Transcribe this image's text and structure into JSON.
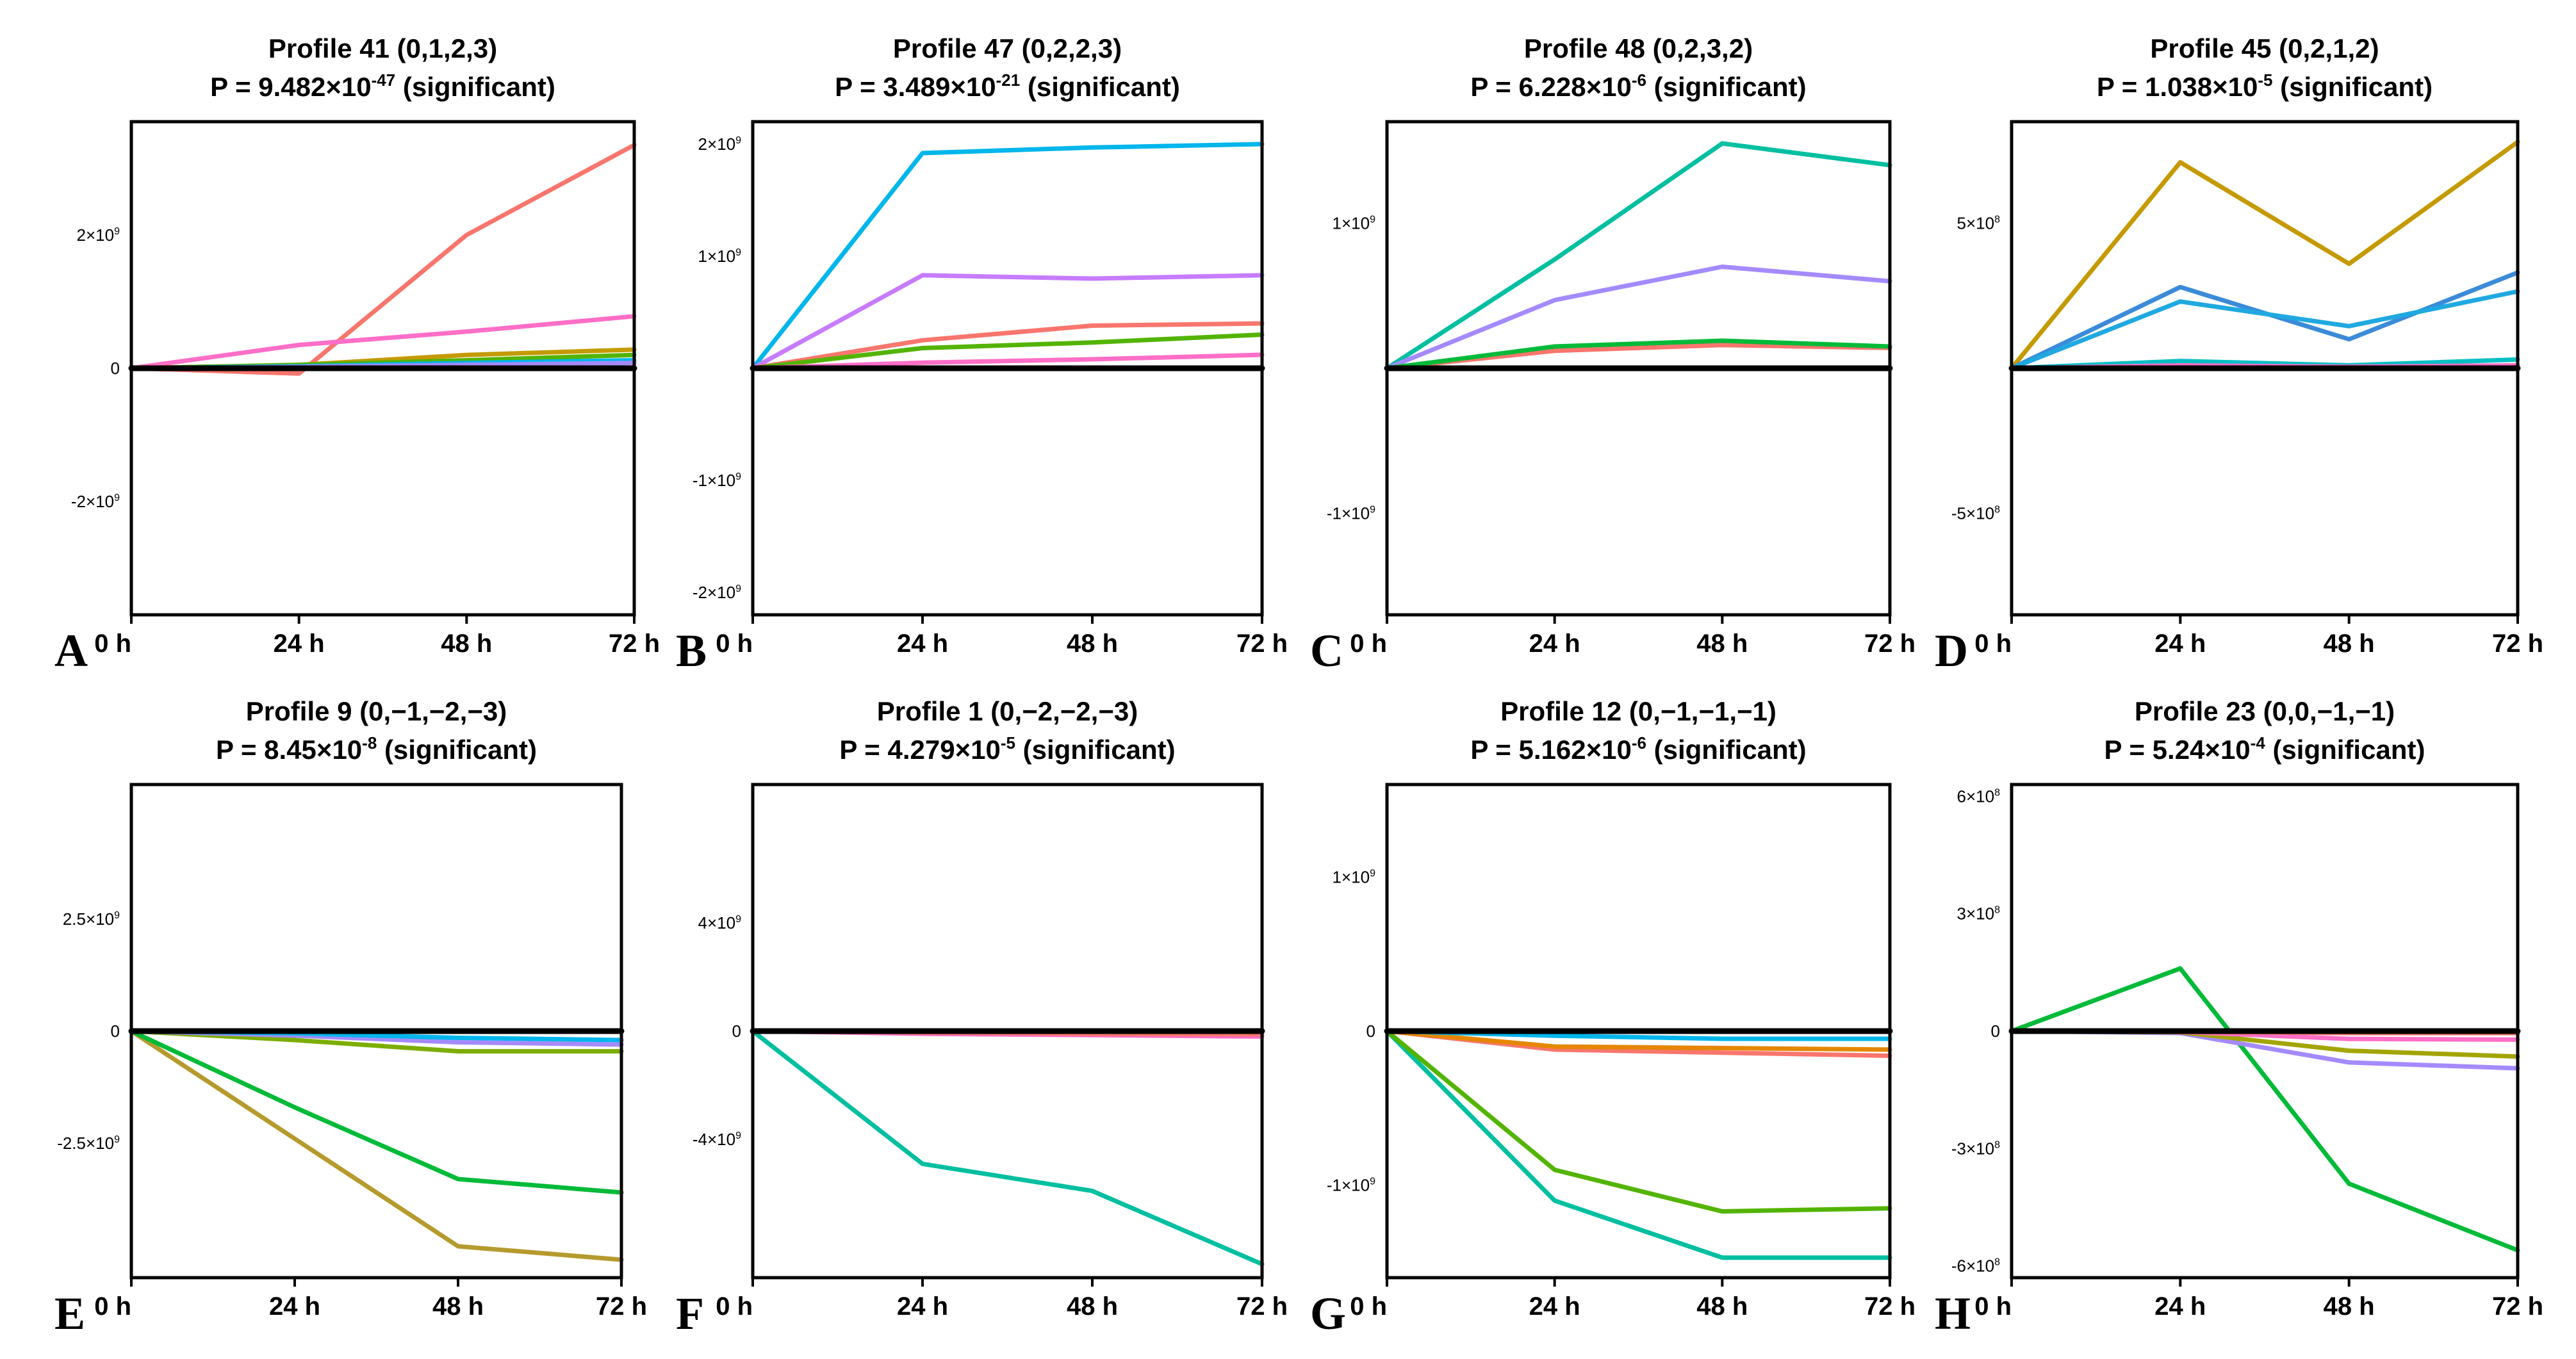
{
  "chart_data": [
    {
      "type": "line",
      "panel_label": "A",
      "title": "Profile 41 (0,1,2,3)",
      "p_base": "P = 9.482×10",
      "p_exp": "-47",
      "p_suffix": " (significant)",
      "categories": [
        "0 h",
        "24 h",
        "48 h",
        "72 h"
      ],
      "ylim": [
        -3700000000.0,
        3700000000.0
      ],
      "yticks": [
        {
          "value": 2000000000.0,
          "base": "2×10",
          "exp": "9"
        },
        {
          "value": 0,
          "base": "0",
          "exp": ""
        },
        {
          "value": -2000000000.0,
          "base": "-2×10",
          "exp": "9"
        }
      ],
      "series": [
        {
          "color": "#f8766d",
          "values": [
            0,
            -80000000.0,
            2000000000.0,
            3350000000.0
          ]
        },
        {
          "color": "#ff6ec7",
          "values": [
            0,
            350000000.0,
            550000000.0,
            780000000.0
          ]
        },
        {
          "color": "#c49a00",
          "values": [
            0,
            50000000.0,
            200000000.0,
            280000000.0
          ]
        },
        {
          "color": "#53b400",
          "values": [
            0,
            50000000.0,
            120000000.0,
            200000000.0
          ]
        },
        {
          "color": "#00b6eb",
          "values": [
            0,
            30000000.0,
            80000000.0,
            120000000.0
          ]
        },
        {
          "color": "#a58aff",
          "values": [
            0,
            20000000.0,
            50000000.0,
            80000000.0
          ]
        },
        {
          "color": "#000000",
          "values": [
            0,
            0,
            0,
            0
          ]
        }
      ]
    },
    {
      "type": "line",
      "panel_label": "B",
      "title": "Profile 47 (0,2,2,3)",
      "p_base": "P = 3.489×10",
      "p_exp": "-21",
      "p_suffix": " (significant)",
      "categories": [
        "0 h",
        "24 h",
        "48 h",
        "72 h"
      ],
      "ylim": [
        -2200000000.0,
        2200000000.0
      ],
      "yticks": [
        {
          "value": 2000000000.0,
          "base": "2×10",
          "exp": "9"
        },
        {
          "value": 1000000000.0,
          "base": "1×10",
          "exp": "9"
        },
        {
          "value": -1000000000.0,
          "base": "-1×10",
          "exp": "9"
        },
        {
          "value": -2000000000.0,
          "base": "-2×10",
          "exp": "9"
        }
      ],
      "series": [
        {
          "color": "#00b6eb",
          "values": [
            0,
            1920000000.0,
            1970000000.0,
            2000000000.0
          ]
        },
        {
          "color": "#c77cff",
          "values": [
            0,
            830000000.0,
            800000000.0,
            830000000.0
          ]
        },
        {
          "color": "#f8766d",
          "values": [
            0,
            250000000.0,
            380000000.0,
            400000000.0
          ]
        },
        {
          "color": "#53b400",
          "values": [
            0,
            180000000.0,
            230000000.0,
            300000000.0
          ]
        },
        {
          "color": "#ff6ec7",
          "values": [
            0,
            50000000.0,
            80000000.0,
            120000000.0
          ]
        },
        {
          "color": "#000000",
          "values": [
            0,
            0,
            0,
            0
          ]
        }
      ]
    },
    {
      "type": "line",
      "panel_label": "C",
      "title": "Profile 48 (0,2,3,2)",
      "p_base": "P = 6.228×10",
      "p_exp": "-6",
      "p_suffix": " (significant)",
      "categories": [
        "0 h",
        "24 h",
        "48 h",
        "72 h"
      ],
      "ylim": [
        -1700000000.0,
        1700000000.0
      ],
      "yticks": [
        {
          "value": 1000000000.0,
          "base": "1×10",
          "exp": "9"
        },
        {
          "value": -1000000000.0,
          "base": "-1×10",
          "exp": "9"
        }
      ],
      "series": [
        {
          "color": "#00bfa0",
          "values": [
            0,
            750000000.0,
            1550000000.0,
            1400000000.0
          ]
        },
        {
          "color": "#a58aff",
          "values": [
            0,
            470000000.0,
            700000000.0,
            600000000.0
          ]
        },
        {
          "color": "#f8766d",
          "values": [
            0,
            120000000.0,
            160000000.0,
            140000000.0
          ]
        },
        {
          "color": "#00ba38",
          "values": [
            0,
            150000000.0,
            190000000.0,
            150000000.0
          ]
        },
        {
          "color": "#000000",
          "values": [
            0,
            0,
            0,
            0
          ]
        }
      ]
    },
    {
      "type": "line",
      "panel_label": "D",
      "title": "Profile 45 (0,2,1,2)",
      "p_base": "P = 1.038×10",
      "p_exp": "-5",
      "p_suffix": " (significant)",
      "categories": [
        "0 h",
        "24 h",
        "48 h",
        "72 h"
      ],
      "ylim": [
        -850000000.0,
        850000000.0
      ],
      "yticks": [
        {
          "value": 500000000.0,
          "base": "5×10",
          "exp": "8"
        },
        {
          "value": -500000000.0,
          "base": "-5×10",
          "exp": "8"
        }
      ],
      "series": [
        {
          "color": "#c49a00",
          "values": [
            0,
            710000000.0,
            360000000.0,
            780000000.0
          ]
        },
        {
          "color": "#3b8bd9",
          "values": [
            0,
            280000000.0,
            100000000.0,
            330000000.0
          ]
        },
        {
          "color": "#1fa9e0",
          "values": [
            0,
            230000000.0,
            145000000.0,
            265000000.0
          ]
        },
        {
          "color": "#00bfc4",
          "values": [
            0,
            25000000.0,
            10000000.0,
            30000000.0
          ]
        },
        {
          "color": "#ff6ec7",
          "values": [
            0,
            10000000.0,
            5000000.0,
            10000000.0
          ]
        },
        {
          "color": "#000000",
          "values": [
            0,
            0,
            0,
            0
          ]
        }
      ]
    },
    {
      "type": "line",
      "panel_label": "E",
      "title": "Profile 9 (0,−1,−2,−3)",
      "p_base": "P = 8.45×10",
      "p_exp": "-8",
      "p_suffix": " (significant)",
      "categories": [
        "0 h",
        "24 h",
        "48 h",
        "72 h"
      ],
      "ylim": [
        -5500000000.0,
        5500000000.0
      ],
      "yticks": [
        {
          "value": 2500000000.0,
          "base": "2.5×10",
          "exp": "9"
        },
        {
          "value": 0,
          "base": "0",
          "exp": ""
        },
        {
          "value": -2500000000.0,
          "base": "-2.5×10",
          "exp": "9"
        }
      ],
      "series": [
        {
          "color": "#b59a2d",
          "values": [
            0,
            -2400000000.0,
            -4800000000.0,
            -5100000000.0
          ]
        },
        {
          "color": "#00ba38",
          "values": [
            0,
            -1700000000.0,
            -3300000000.0,
            -3600000000.0
          ]
        },
        {
          "color": "#7cae00",
          "values": [
            0,
            -200000000.0,
            -450000000.0,
            -450000000.0
          ]
        },
        {
          "color": "#a58aff",
          "values": [
            0,
            -100000000.0,
            -250000000.0,
            -300000000.0
          ]
        },
        {
          "color": "#00b6eb",
          "values": [
            0,
            -50000000.0,
            -150000000.0,
            -200000000.0
          ]
        },
        {
          "color": "#000000",
          "values": [
            0,
            0,
            0,
            0
          ]
        }
      ]
    },
    {
      "type": "line",
      "panel_label": "F",
      "title": "Profile 1 (0,−2,−2,−3)",
      "p_base": "P = 4.279×10",
      "p_exp": "-5",
      "p_suffix": " (significant)",
      "categories": [
        "0 h",
        "24 h",
        "48 h",
        "72 h"
      ],
      "ylim": [
        -9100000000.0,
        9100000000.0
      ],
      "yticks": [
        {
          "value": 4000000000.0,
          "base": "4×10",
          "exp": "9"
        },
        {
          "value": 0,
          "base": "0",
          "exp": ""
        },
        {
          "value": -4000000000.0,
          "base": "-4×10",
          "exp": "9"
        }
      ],
      "series": [
        {
          "color": "#00bfa0",
          "values": [
            0,
            -4900000000.0,
            -5900000000.0,
            -8600000000.0
          ]
        },
        {
          "color": "#ff6ec7",
          "values": [
            0,
            -100000000.0,
            -150000000.0,
            -200000000.0
          ]
        },
        {
          "color": "#f8766d",
          "values": [
            0,
            -50000000.0,
            -100000000.0,
            -120000000.0
          ]
        },
        {
          "color": "#000000",
          "values": [
            0,
            0,
            0,
            0
          ]
        }
      ]
    },
    {
      "type": "line",
      "panel_label": "G",
      "title": "Profile 12 (0,−1,−1,−1)",
      "p_base": "P = 5.162×10",
      "p_exp": "-6",
      "p_suffix": " (significant)",
      "categories": [
        "0 h",
        "24 h",
        "48 h",
        "72 h"
      ],
      "ylim": [
        -1600000000.0,
        1600000000.0
      ],
      "yticks": [
        {
          "value": 1000000000.0,
          "base": "1×10",
          "exp": "9"
        },
        {
          "value": 0,
          "base": "0",
          "exp": ""
        },
        {
          "value": -1000000000.0,
          "base": "-1×10",
          "exp": "9"
        }
      ],
      "series": [
        {
          "color": "#00bfa0",
          "values": [
            0,
            -1100000000.0,
            -1470000000.0,
            -1470000000.0
          ]
        },
        {
          "color": "#53b400",
          "values": [
            0,
            -900000000.0,
            -1170000000.0,
            -1150000000.0
          ]
        },
        {
          "color": "#f8766d",
          "values": [
            0,
            -120000000.0,
            -140000000.0,
            -160000000.0
          ]
        },
        {
          "color": "#e58700",
          "values": [
            0,
            -100000000.0,
            -110000000.0,
            -120000000.0
          ]
        },
        {
          "color": "#00b6eb",
          "values": [
            0,
            -30000000.0,
            -50000000.0,
            -50000000.0
          ]
        },
        {
          "color": "#000000",
          "values": [
            0,
            0,
            0,
            0
          ]
        }
      ]
    },
    {
      "type": "line",
      "panel_label": "H",
      "title": "Profile 23 (0,0,−1,−1)",
      "p_base": "P = 5.24×10",
      "p_exp": "-4",
      "p_suffix": " (significant)",
      "categories": [
        "0 h",
        "24 h",
        "48 h",
        "72 h"
      ],
      "ylim": [
        -630000000.0,
        630000000.0
      ],
      "yticks": [
        {
          "value": 600000000.0,
          "base": "6×10",
          "exp": "8"
        },
        {
          "value": 300000000.0,
          "base": "3×10",
          "exp": "8"
        },
        {
          "value": 0,
          "base": "0",
          "exp": ""
        },
        {
          "value": -300000000.0,
          "base": "-3×10",
          "exp": "8"
        },
        {
          "value": -600000000.0,
          "base": "-6×10",
          "exp": "8"
        }
      ],
      "series": [
        {
          "color": "#00ba38",
          "values": [
            0,
            160000000.0,
            -390000000.0,
            -560000000.0
          ]
        },
        {
          "color": "#a58aff",
          "values": [
            0,
            -5000000.0,
            -80000000.0,
            -95000000.0
          ]
        },
        {
          "color": "#a3a500",
          "values": [
            0,
            -3000000.0,
            -50000000.0,
            -65000000.0
          ]
        },
        {
          "color": "#ff6ec7",
          "values": [
            0,
            -2000000.0,
            -20000000.0,
            -22000000.0
          ]
        },
        {
          "color": "#f8766d",
          "values": [
            0,
            -2000000.0,
            -5000000.0,
            -5000000.0
          ]
        },
        {
          "color": "#000000",
          "values": [
            0,
            0,
            0,
            0
          ]
        }
      ]
    }
  ]
}
